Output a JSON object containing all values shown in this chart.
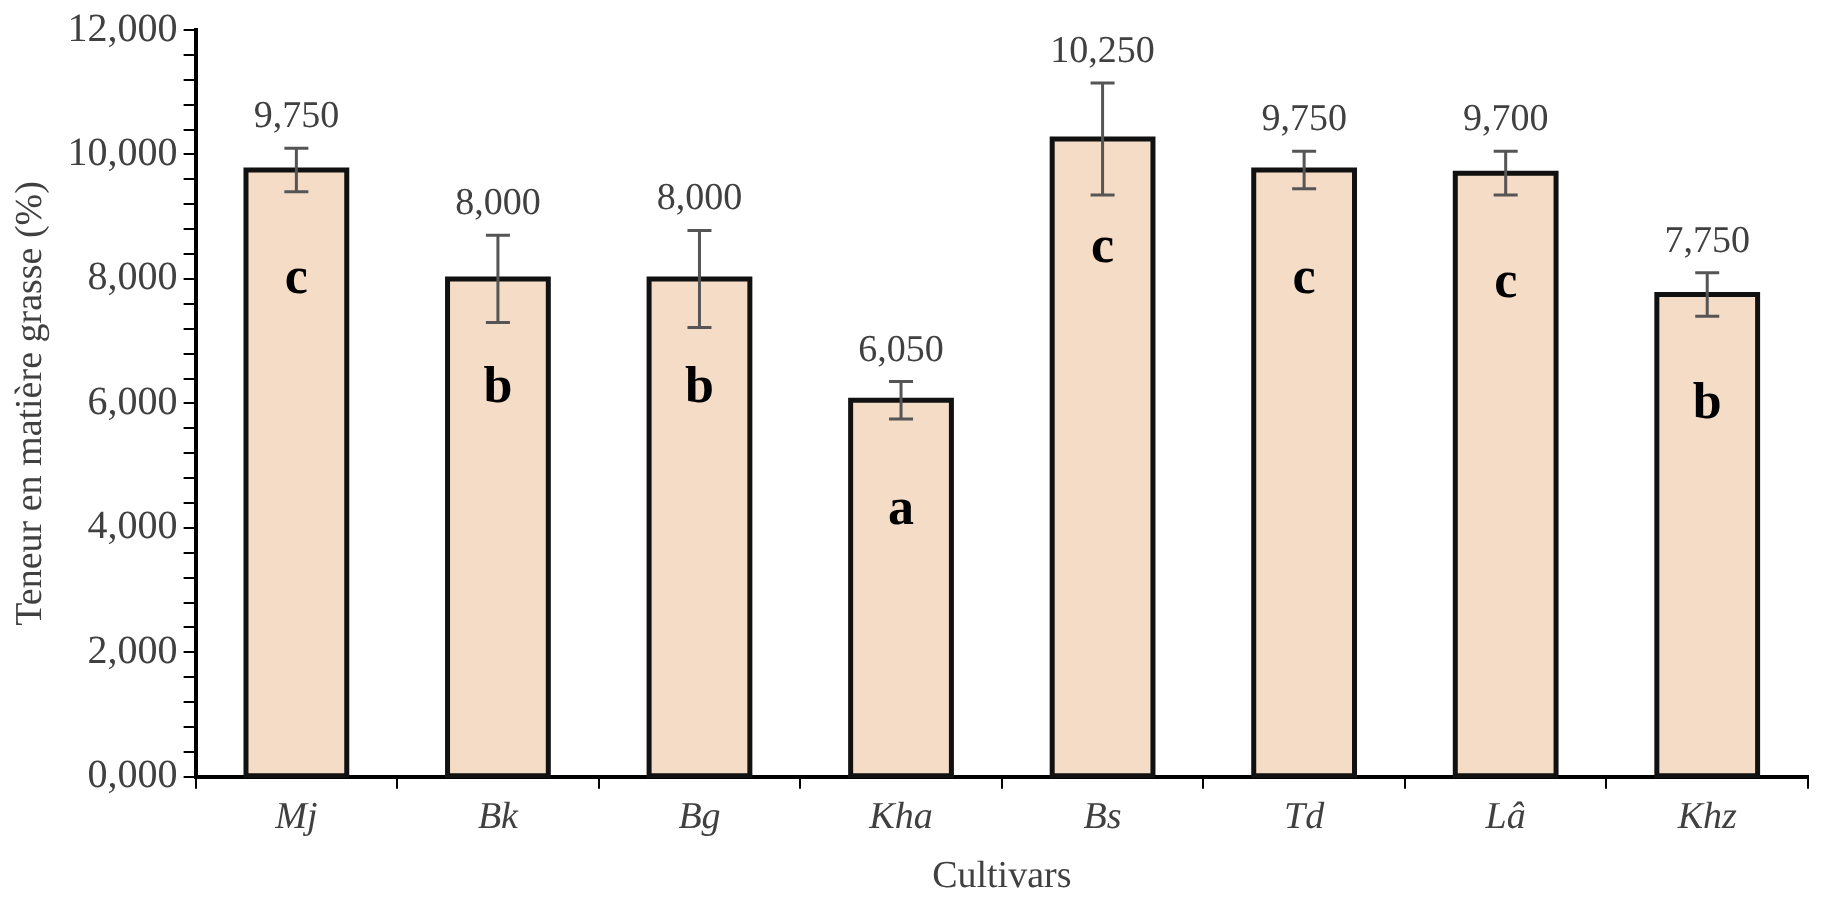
{
  "chart_data": {
    "type": "bar",
    "xlabel": "Cultivars",
    "ylabel": "Teneur en matière grasse (%)",
    "categories": [
      "Mj",
      "Bk",
      "Bg",
      "Kha",
      "Bs",
      "Td",
      "Lâ",
      "Khz"
    ],
    "values": [
      9750,
      8000,
      8000,
      6050,
      10250,
      9750,
      9700,
      7750
    ],
    "value_labels": [
      "9,750",
      "8,000",
      "8,000",
      "6,050",
      "10,250",
      "9,750",
      "9,700",
      "7,750"
    ],
    "errors": [
      350,
      700,
      780,
      300,
      900,
      300,
      350,
      350
    ],
    "color": "#f5dcc6",
    "ylim": [
      0,
      12000
    ],
    "yticks": [
      {
        "value": 0,
        "label": "0,000"
      },
      {
        "value": 400,
        "label": null
      },
      {
        "value": 800,
        "label": null
      },
      {
        "value": 1200,
        "label": null
      },
      {
        "value": 1600,
        "label": null
      },
      {
        "value": 2000,
        "label": "2,000"
      },
      {
        "value": 2400,
        "label": null
      },
      {
        "value": 2800,
        "label": null
      },
      {
        "value": 3200,
        "label": null
      },
      {
        "value": 3600,
        "label": null
      },
      {
        "value": 4000,
        "label": "4,000"
      },
      {
        "value": 4400,
        "label": null
      },
      {
        "value": 4800,
        "label": null
      },
      {
        "value": 5200,
        "label": null
      },
      {
        "value": 5600,
        "label": null
      },
      {
        "value": 6000,
        "label": "6,000"
      },
      {
        "value": 6400,
        "label": null
      },
      {
        "value": 6800,
        "label": null
      },
      {
        "value": 7200,
        "label": null
      },
      {
        "value": 7600,
        "label": null
      },
      {
        "value": 8000,
        "label": "8,000"
      },
      {
        "value": 8400,
        "label": null
      },
      {
        "value": 8800,
        "label": null
      },
      {
        "value": 9200,
        "label": null
      },
      {
        "value": 9600,
        "label": null
      },
      {
        "value": 10000,
        "label": "10,000"
      },
      {
        "value": 10400,
        "label": null
      },
      {
        "value": 10800,
        "label": null
      },
      {
        "value": 11200,
        "label": null
      },
      {
        "value": 11600,
        "label": null
      },
      {
        "value": 12000,
        "label": "12,000"
      }
    ],
    "annotations": [
      "c",
      "b",
      "b",
      "a",
      "c",
      "c",
      "c",
      "b"
    ],
    "grid": false,
    "legend": false
  }
}
